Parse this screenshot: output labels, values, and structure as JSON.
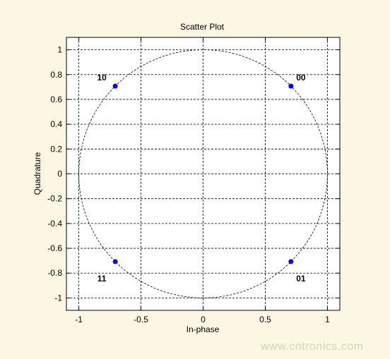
{
  "chart_data": {
    "type": "scatter",
    "title": "Scatter Plot",
    "xlabel": "In-phase",
    "ylabel": "Quadrature",
    "xlim": [
      -1.1,
      1.1
    ],
    "ylim": [
      -1.1,
      1.1
    ],
    "xticks": [
      -1,
      -0.5,
      0,
      0.5,
      1
    ],
    "xtick_labels": [
      "-1",
      "-0.5",
      "0",
      "0.5",
      "1"
    ],
    "yticks": [
      1,
      0.8,
      0.6,
      0.4,
      0.2,
      0,
      -0.2,
      -0.4,
      -0.6,
      -0.8,
      -1
    ],
    "ytick_labels": [
      "1",
      "0.8",
      "0.6",
      "0.4",
      "0.2",
      "0",
      "-0.2",
      "-0.4",
      "-0.6",
      "-0.8",
      "-1"
    ],
    "grid": true,
    "reference_circle_radius": 1,
    "point_color": "#0000ff",
    "points": [
      {
        "x": 0.707,
        "y": 0.707,
        "label": "00"
      },
      {
        "x": -0.707,
        "y": 0.707,
        "label": "10"
      },
      {
        "x": -0.707,
        "y": -0.707,
        "label": "11"
      },
      {
        "x": 0.707,
        "y": -0.707,
        "label": "01"
      }
    ]
  },
  "watermark": "www.cntronics.com"
}
